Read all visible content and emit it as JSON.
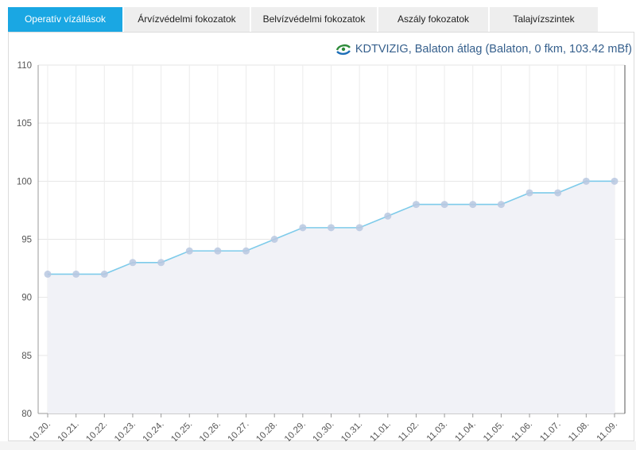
{
  "tabs": [
    {
      "label": "Operatív vízállások",
      "active": true
    },
    {
      "label": "Árvízvédelmi fokozatok",
      "active": false
    },
    {
      "label": "Belvízvédelmi fokozatok",
      "active": false
    },
    {
      "label": "Aszály fokozatok",
      "active": false
    },
    {
      "label": "Talajvízszintek",
      "active": false
    }
  ],
  "chart": {
    "title": "KDTVIZIG, Balaton átlag (Balaton, 0 fkm, 103.42 mBf)",
    "logo_icon": "kdtvizig-logo-icon"
  },
  "colors": {
    "tab_active": "#1aa7e3",
    "tab_inactive": "#eeeeee",
    "line": "#7ecbea",
    "marker": "#b8c8e0",
    "area": "#f1f2f7",
    "title": "#355f8c"
  },
  "chart_data": {
    "type": "line",
    "title": "KDTVIZIG, Balaton átlag (Balaton, 0 fkm, 103.42 mBf)",
    "categories": [
      "10.20.",
      "10.21.",
      "10.22.",
      "10.23.",
      "10.24.",
      "10.25.",
      "10.26.",
      "10.27.",
      "10.28.",
      "10.29.",
      "10.30.",
      "10.31.",
      "11.01.",
      "11.02.",
      "11.03.",
      "11.04.",
      "11.05.",
      "11.06.",
      "11.07.",
      "11.08.",
      "11.09."
    ],
    "series": [
      {
        "values": [
          92,
          92,
          92,
          93,
          93,
          94,
          94,
          94,
          95,
          96,
          96,
          96,
          97,
          98,
          98,
          98,
          98,
          99,
          99,
          100,
          100
        ]
      }
    ],
    "yticks": [
      "80",
      "85",
      "90",
      "95",
      "100",
      "105",
      "110"
    ],
    "ylim": [
      80,
      110
    ],
    "grid": true,
    "area_fill": true
  }
}
